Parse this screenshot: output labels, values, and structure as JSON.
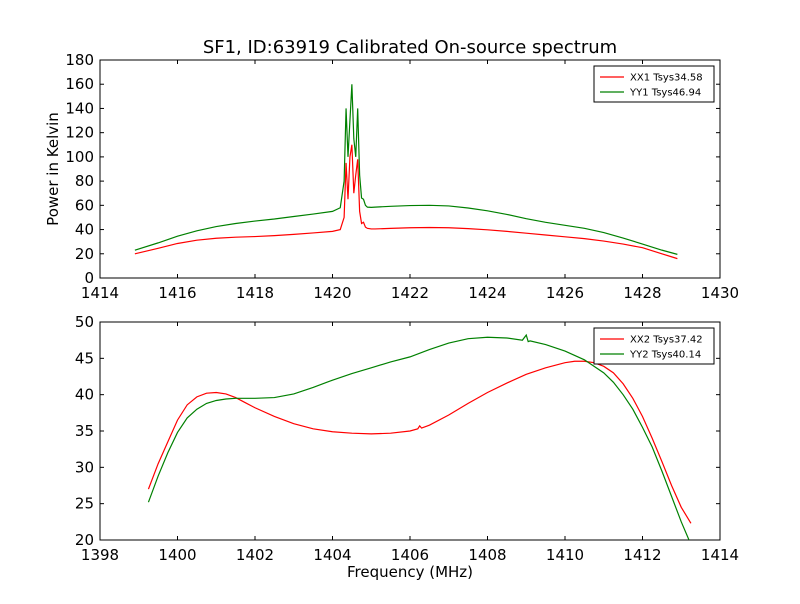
{
  "title": "SF1, ID:63919 Calibrated On-source spectrum",
  "chart_data": [
    {
      "type": "line",
      "xlim": [
        1414,
        1430
      ],
      "ylim": [
        0,
        180
      ],
      "xticks": [
        1414,
        1416,
        1418,
        1420,
        1422,
        1424,
        1426,
        1428,
        1430
      ],
      "yticks": [
        0,
        20,
        40,
        60,
        80,
        100,
        120,
        140,
        160,
        180
      ],
      "ylabel": "Power in Kelvin",
      "xlabel": "",
      "legend_position": "top-right",
      "series": [
        {
          "name": "XX1 Tsys34.58",
          "color": "#ff0000",
          "x": [
            1414.9,
            1415.5,
            1416.0,
            1416.5,
            1417.0,
            1417.5,
            1418.0,
            1418.5,
            1419.0,
            1419.5,
            1420.0,
            1420.2,
            1420.3,
            1420.35,
            1420.4,
            1420.45,
            1420.5,
            1420.55,
            1420.6,
            1420.65,
            1420.7,
            1420.75,
            1420.8,
            1420.85,
            1420.9,
            1421.0,
            1421.1,
            1421.5,
            1422.0,
            1422.5,
            1423.0,
            1423.5,
            1424.0,
            1424.5,
            1425.0,
            1425.5,
            1426.0,
            1426.5,
            1427.0,
            1427.5,
            1428.0,
            1428.5,
            1428.9
          ],
          "y": [
            20,
            24.5,
            28.5,
            31.2,
            32.8,
            33.7,
            34.2,
            35.0,
            36.0,
            37.2,
            38.5,
            40,
            50,
            95,
            65,
            100,
            110,
            70,
            85,
            98,
            55,
            45,
            46,
            42,
            41,
            40.5,
            40.5,
            41.0,
            41.5,
            41.7,
            41.5,
            40.8,
            39.8,
            38.5,
            37.0,
            35.5,
            34.0,
            32.5,
            30.5,
            28.0,
            25.0,
            20.0,
            16.0
          ]
        },
        {
          "name": "YY1 Tsys46.94",
          "color": "#008000",
          "x": [
            1414.9,
            1415.5,
            1416.0,
            1416.5,
            1417.0,
            1417.5,
            1418.0,
            1418.5,
            1419.0,
            1419.5,
            1420.0,
            1420.2,
            1420.3,
            1420.35,
            1420.4,
            1420.45,
            1420.5,
            1420.55,
            1420.6,
            1420.65,
            1420.7,
            1420.75,
            1420.8,
            1420.85,
            1420.9,
            1421.0,
            1421.1,
            1421.5,
            1422.0,
            1422.5,
            1423.0,
            1423.5,
            1424.0,
            1424.5,
            1425.0,
            1425.5,
            1426.0,
            1426.5,
            1427.0,
            1427.5,
            1428.0,
            1428.5,
            1428.9
          ],
          "y": [
            23,
            29,
            34.5,
            39,
            42.5,
            45,
            47,
            48.7,
            50.8,
            52.8,
            55,
            58,
            80,
            140,
            100,
            130,
            160,
            115,
            100,
            140,
            85,
            66,
            65,
            60,
            58.5,
            58.3,
            58.5,
            59.2,
            59.8,
            60.0,
            59.5,
            57.8,
            55.5,
            52.5,
            49.0,
            46.0,
            43.5,
            41.0,
            37.5,
            33.0,
            28.0,
            23.0,
            19.5
          ]
        }
      ]
    },
    {
      "type": "line",
      "xlim": [
        1398,
        1414
      ],
      "ylim": [
        20,
        50
      ],
      "xticks": [
        1398,
        1400,
        1402,
        1404,
        1406,
        1408,
        1410,
        1412,
        1414
      ],
      "yticks": [
        20,
        25,
        30,
        35,
        40,
        45,
        50
      ],
      "xlabel": "Frequency (MHz)",
      "ylabel": "",
      "legend_position": "top-right",
      "series": [
        {
          "name": "XX2 Tsys37.42",
          "color": "#ff0000",
          "x": [
            1399.25,
            1399.5,
            1399.75,
            1400.0,
            1400.25,
            1400.5,
            1400.75,
            1401.0,
            1401.25,
            1401.5,
            1401.75,
            1402.0,
            1402.5,
            1403.0,
            1403.5,
            1404.0,
            1404.5,
            1405.0,
            1405.5,
            1406.0,
            1406.2,
            1406.25,
            1406.3,
            1406.5,
            1407.0,
            1407.5,
            1408.0,
            1408.5,
            1409.0,
            1409.5,
            1410.0,
            1410.25,
            1410.5,
            1410.75,
            1411.0,
            1411.25,
            1411.5,
            1411.75,
            1412.0,
            1412.25,
            1412.5,
            1412.75,
            1413.0,
            1413.25
          ],
          "y": [
            27.0,
            30.5,
            33.5,
            36.5,
            38.6,
            39.7,
            40.2,
            40.3,
            40.1,
            39.6,
            38.9,
            38.2,
            37.0,
            36.0,
            35.3,
            34.9,
            34.7,
            34.6,
            34.7,
            35.0,
            35.3,
            35.7,
            35.4,
            35.8,
            37.2,
            38.8,
            40.3,
            41.6,
            42.8,
            43.7,
            44.4,
            44.6,
            44.6,
            44.4,
            43.9,
            43.0,
            41.5,
            39.5,
            37.0,
            34.0,
            30.8,
            27.5,
            24.5,
            22.3
          ]
        },
        {
          "name": "YY2 Tsys40.14",
          "color": "#008000",
          "x": [
            1399.25,
            1399.5,
            1399.75,
            1400.0,
            1400.25,
            1400.5,
            1400.75,
            1401.0,
            1401.25,
            1401.5,
            1401.75,
            1402.0,
            1402.5,
            1403.0,
            1403.5,
            1404.0,
            1404.5,
            1405.0,
            1405.5,
            1406.0,
            1406.5,
            1407.0,
            1407.5,
            1408.0,
            1408.5,
            1408.9,
            1409.0,
            1409.05,
            1409.1,
            1409.5,
            1410.0,
            1410.5,
            1411.0,
            1411.25,
            1411.5,
            1411.75,
            1412.0,
            1412.25,
            1412.5,
            1412.75,
            1413.0,
            1413.2
          ],
          "y": [
            25.2,
            28.8,
            32.0,
            34.8,
            36.8,
            38.0,
            38.8,
            39.2,
            39.4,
            39.5,
            39.5,
            39.5,
            39.6,
            40.1,
            41.0,
            42.0,
            42.9,
            43.7,
            44.5,
            45.2,
            46.2,
            47.1,
            47.7,
            47.9,
            47.8,
            47.5,
            48.2,
            47.3,
            47.4,
            46.9,
            46.0,
            44.8,
            43.0,
            41.7,
            40.0,
            38.0,
            35.5,
            32.8,
            29.5,
            26.0,
            22.5,
            20.0
          ]
        }
      ]
    }
  ]
}
